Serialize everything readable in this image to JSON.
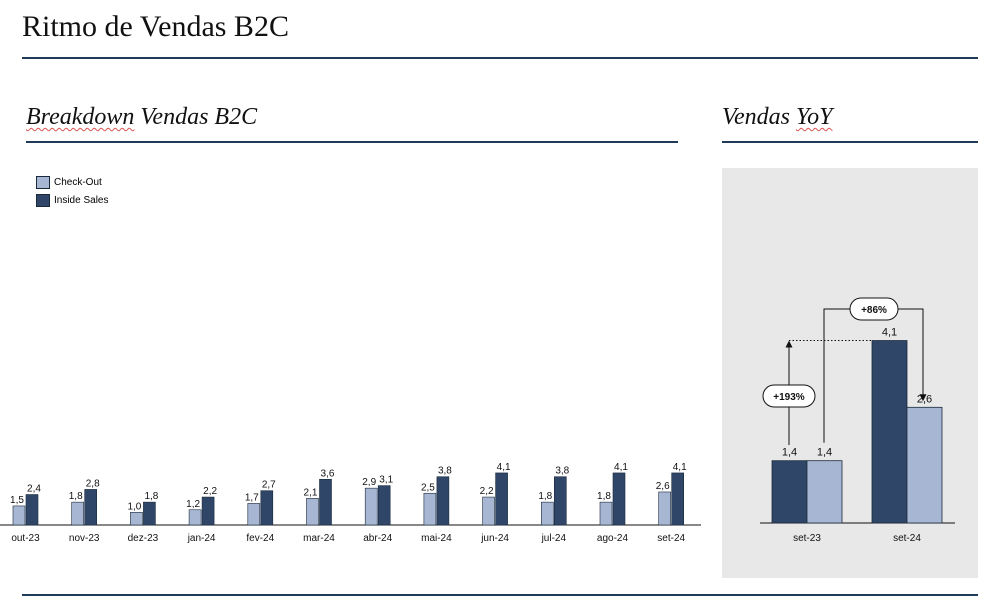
{
  "page": {
    "title": "Ritmo de Vendas B2C",
    "left_section_title_a": "Breakdown",
    "left_section_title_b": "Vendas B2C",
    "right_section_title_a": "Vendas",
    "right_section_title_b": "YoY"
  },
  "colors": {
    "check_out": "#a7b7d3",
    "inside_sales": "#2f4668",
    "rule": "#1f3b57",
    "panel": "#e8e8e8"
  },
  "chart_data": [
    {
      "type": "bar",
      "categories": [
        "out-23",
        "nov-23",
        "dez-23",
        "jan-24",
        "fev-24",
        "mar-24",
        "abr-24",
        "mai-24",
        "jun-24",
        "jul-24",
        "ago-24",
        "set-24"
      ],
      "series": [
        {
          "name": "Check-Out",
          "values": [
            1.5,
            1.8,
            1.0,
            1.2,
            1.7,
            2.1,
            2.9,
            2.5,
            2.2,
            1.8,
            1.8,
            2.6
          ],
          "labels": [
            "1,5",
            "1,8",
            "1,0",
            "1,2",
            "1,7",
            "2,1",
            "2,9",
            "2,5",
            "2,2",
            "1,8",
            "1,8",
            "2,6"
          ]
        },
        {
          "name": "Inside Sales",
          "values": [
            2.4,
            2.8,
            1.8,
            2.2,
            2.7,
            3.6,
            3.1,
            3.8,
            4.1,
            3.8,
            4.1,
            4.1
          ],
          "labels": [
            "2,4",
            "2,8",
            "1,8",
            "2,2",
            "2,7",
            "3,6",
            "3,1",
            "3,8",
            "4,1",
            "3,8",
            "4,1",
            "4,1"
          ]
        }
      ],
      "legend_placement": "top-left",
      "grid": false
    },
    {
      "type": "bar",
      "categories": [
        "set-23",
        "set-24"
      ],
      "series": [
        {
          "name": "Inside Sales",
          "values": [
            1.4,
            4.1
          ],
          "labels": [
            "1,4",
            "4,1"
          ]
        },
        {
          "name": "Check-Out",
          "values": [
            1.4,
            2.6
          ],
          "labels": [
            "1,4",
            "2,6"
          ]
        }
      ],
      "annotations": [
        "+193%",
        "+86%"
      ],
      "grid": false
    }
  ]
}
